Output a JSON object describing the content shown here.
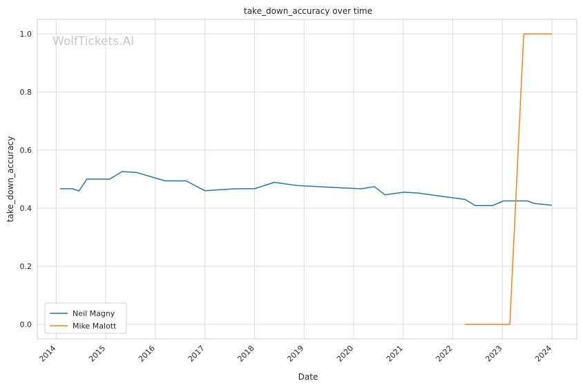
{
  "chart_data": {
    "type": "line",
    "title": "take_down_accuracy over time",
    "xlabel": "Date",
    "ylabel": "take_down_accuracy",
    "watermark": "WolfTickets.AI",
    "xlim": [
      2013.62,
      2024.5
    ],
    "ylim": [
      -0.05,
      1.05
    ],
    "x_ticks": [
      2014,
      2015,
      2016,
      2017,
      2018,
      2019,
      2020,
      2021,
      2022,
      2023,
      2024
    ],
    "x_tick_labels": [
      "2014",
      "2015",
      "2016",
      "2017",
      "2018",
      "2019",
      "2020",
      "2021",
      "2022",
      "2023",
      "2024"
    ],
    "y_ticks": [
      0.0,
      0.2,
      0.4,
      0.6,
      0.8,
      1.0
    ],
    "y_tick_labels": [
      "0.0",
      "0.2",
      "0.4",
      "0.6",
      "0.8",
      "1.0"
    ],
    "grid": true,
    "legend_position": "bottom-left",
    "series": [
      {
        "name": "Neil Magny",
        "color": "#1f77b4",
        "x": [
          2014.08,
          2014.33,
          2014.46,
          2014.62,
          2015.08,
          2015.33,
          2015.62,
          2016.2,
          2016.62,
          2017.0,
          2017.62,
          2018.0,
          2018.4,
          2018.86,
          2019.3,
          2019.75,
          2020.16,
          2020.42,
          2020.63,
          2021.02,
          2021.3,
          2021.9,
          2022.25,
          2022.45,
          2022.8,
          2023.02,
          2023.25,
          2023.5,
          2023.65,
          2024.0
        ],
        "y": [
          0.467,
          0.467,
          0.459,
          0.5,
          0.5,
          0.526,
          0.523,
          0.494,
          0.494,
          0.46,
          0.467,
          0.467,
          0.489,
          0.478,
          0.474,
          0.47,
          0.467,
          0.474,
          0.446,
          0.455,
          0.452,
          0.438,
          0.43,
          0.409,
          0.409,
          0.425,
          0.425,
          0.425,
          0.416,
          0.41
        ]
      },
      {
        "name": "Mike Malott",
        "color": "#ff7f0e",
        "x": [
          2022.24,
          2022.6,
          2023.15,
          2023.43,
          2024.0
        ],
        "y": [
          0.0,
          0.0,
          0.0,
          1.0,
          1.0
        ]
      }
    ]
  }
}
